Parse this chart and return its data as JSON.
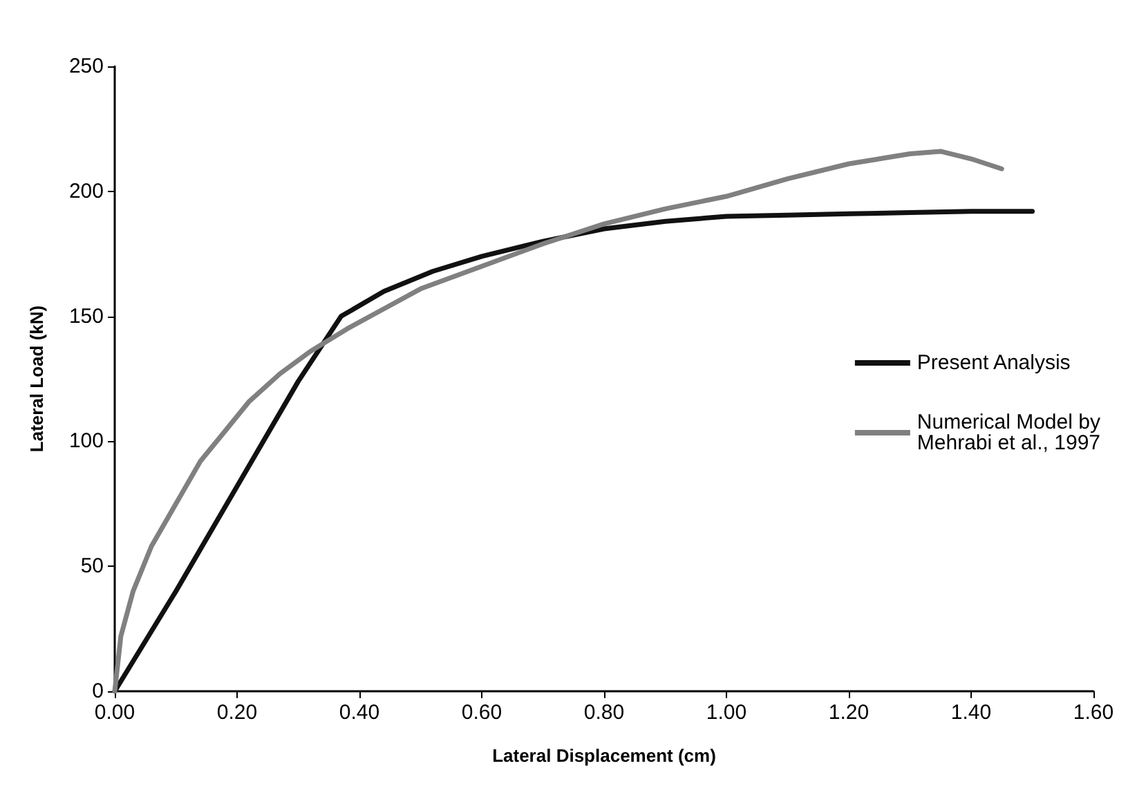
{
  "chart_data": {
    "type": "line",
    "xlabel": "Lateral Displacement (cm)",
    "ylabel": "Lateral Load (kN)",
    "xlim": [
      0,
      1.6
    ],
    "xticks": [
      {
        "value": 0,
        "label": "0.00"
      },
      {
        "value": 0.2,
        "label": "0.20"
      },
      {
        "value": 0.4,
        "label": "0.40"
      },
      {
        "value": 0.6,
        "label": "0.60"
      },
      {
        "value": 0.8,
        "label": "0.80"
      },
      {
        "value": 1,
        "label": "1.00"
      },
      {
        "value": 1.2,
        "label": "1.20"
      },
      {
        "value": 1.4,
        "label": "1.40"
      },
      {
        "value": 1.6,
        "label": "1.60"
      }
    ],
    "ylim": [
      0,
      250
    ],
    "yticks": [
      0,
      50,
      100,
      150,
      200,
      250
    ],
    "grid": false,
    "legend": "right",
    "marker": "none",
    "line_style": "solid",
    "series": [
      {
        "name": "Present Analysis",
        "color": "#111111",
        "x": [
          0,
          0.1,
          0.2,
          0.3,
          0.37,
          0.44,
          0.52,
          0.6,
          0.7,
          0.8,
          0.9,
          1.0,
          1.1,
          1.2,
          1.3,
          1.4,
          1.5
        ],
        "values": [
          0,
          40,
          82,
          124,
          150,
          160,
          168,
          174,
          180,
          185,
          188,
          190,
          190.5,
          191,
          191.5,
          192,
          192
        ]
      },
      {
        "name": "Numerical Model by\nMehrabi et al., 1997",
        "color": "#808080",
        "x": [
          0,
          0.01,
          0.03,
          0.06,
          0.1,
          0.14,
          0.18,
          0.22,
          0.27,
          0.32,
          0.38,
          0.44,
          0.5,
          0.6,
          0.7,
          0.8,
          0.9,
          1.0,
          1.1,
          1.2,
          1.3,
          1.35,
          1.4,
          1.45
        ],
        "values": [
          0,
          22,
          40,
          58,
          75,
          92,
          104,
          116,
          127,
          136,
          145,
          153,
          161,
          170,
          179,
          187,
          193,
          198,
          205,
          211,
          215,
          216,
          213,
          209
        ]
      }
    ]
  }
}
